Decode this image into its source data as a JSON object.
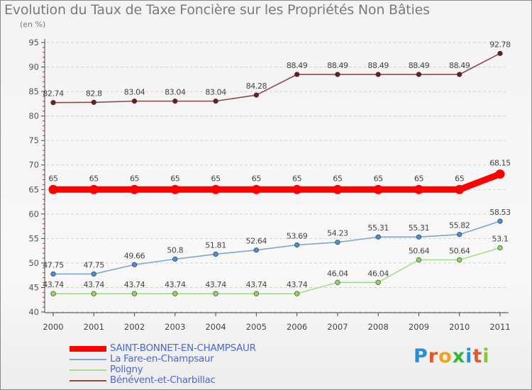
{
  "title": "Evolution du Taux de Taxe Foncière sur les Propriétés Non Bâties",
  "subtitle": "(en %)",
  "logo": {
    "letters": [
      "P",
      "r",
      "o",
      "x",
      "i",
      "t",
      "i"
    ],
    "colors": [
      "#2a8fd6",
      "#e8572a",
      "#f0a21c",
      "#38b43c",
      "#2a8fd6",
      "#e8572a",
      "#8ac43c"
    ]
  },
  "chart_data": {
    "type": "line",
    "title": "Evolution du Taux de Taxe Foncière sur les Propriétés Non Bâties",
    "ylabel": "(en %)",
    "xlabel": "",
    "ylim": [
      40,
      95
    ],
    "yticks": [
      "40",
      "45",
      "50",
      "55",
      "60",
      "65",
      "70",
      "75",
      "80",
      "85",
      "90",
      "95"
    ],
    "categories": [
      "2000",
      "2001",
      "2002",
      "2003",
      "2004",
      "2005",
      "2006",
      "2007",
      "2008",
      "2009",
      "2010",
      "2011"
    ],
    "grid": "horizontal dashed",
    "legend_position": "bottom-left",
    "series": [
      {
        "name": "SAINT-BONNET-EN-CHAMPSAUR",
        "color": "#ff0000",
        "marker_color": "#ff0000",
        "emphasis": true,
        "values": [
          65,
          65,
          65,
          65,
          65,
          65,
          65,
          65,
          65,
          65,
          65,
          68.15
        ],
        "labels": [
          "65",
          "65",
          "65",
          "65",
          "65",
          "65",
          "65",
          "65",
          "65",
          "65",
          "65",
          "68.15"
        ]
      },
      {
        "name": "La Fare-en-Champsaur",
        "color": "#7ca7cf",
        "marker_color": "#4a8fd4",
        "emphasis": false,
        "values": [
          47.75,
          47.75,
          49.66,
          50.8,
          51.81,
          52.64,
          53.69,
          54.23,
          55.31,
          55.31,
          55.82,
          58.53
        ],
        "labels": [
          "47.75",
          "47.75",
          "49.66",
          "50.8",
          "51.81",
          "52.64",
          "53.69",
          "54.23",
          "55.31",
          "55.31",
          "55.82",
          "58.53"
        ]
      },
      {
        "name": "Poligny",
        "color": "#a6dd8a",
        "marker_color": "#8ed660",
        "emphasis": false,
        "values": [
          43.74,
          43.74,
          43.74,
          43.74,
          43.74,
          43.74,
          43.74,
          46.04,
          46.04,
          50.64,
          50.64,
          53.1
        ],
        "labels": [
          "43.74",
          "43.74",
          "43.74",
          "43.74",
          "43.74",
          "43.74",
          "43.74",
          "46.04",
          "46.04",
          "50.64",
          "50.64",
          "53.1"
        ]
      },
      {
        "name": "Bénévent-et-Charbillac",
        "color": "#8b4a4a",
        "marker_color": "#6b1e1e",
        "emphasis": false,
        "values": [
          82.74,
          82.8,
          83.04,
          83.04,
          83.04,
          84.28,
          88.49,
          88.49,
          88.49,
          88.49,
          88.49,
          92.78
        ],
        "labels": [
          "82.74",
          "82.8",
          "83.04",
          "83.04",
          "83.04",
          "84.28",
          "88.49",
          "88.49",
          "88.49",
          "88.49",
          "88.49",
          "92.78"
        ]
      }
    ]
  }
}
